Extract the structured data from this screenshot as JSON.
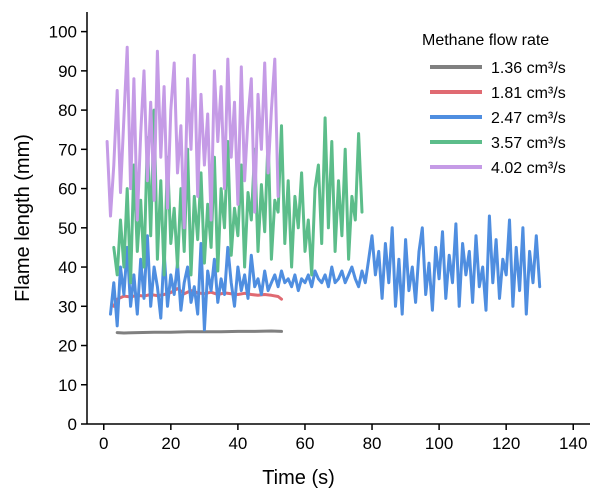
{
  "chart_data": {
    "type": "line",
    "xlabel": "Time (s)",
    "ylabel": "Flame length (mm)",
    "xlim": [
      -5,
      145
    ],
    "ylim": [
      0,
      105
    ],
    "xticks": [
      0,
      20,
      40,
      60,
      80,
      100,
      120,
      140
    ],
    "yticks": [
      0,
      10,
      20,
      30,
      40,
      50,
      60,
      70,
      80,
      90,
      100
    ],
    "grid": false,
    "legend_title": "Methane flow rate",
    "legend_position": "top-right",
    "series": [
      {
        "name": "1.36 cm³/s",
        "color": "#808080",
        "x": [
          4,
          6,
          10,
          15,
          20,
          25,
          30,
          35,
          40,
          45,
          50,
          53
        ],
        "y": [
          23.3,
          23.2,
          23.3,
          23.4,
          23.4,
          23.5,
          23.5,
          23.5,
          23.6,
          23.6,
          23.7,
          23.6
        ]
      },
      {
        "name": "1.81 cm³/s",
        "color": "#e06a72",
        "x": [
          3,
          4,
          6,
          8,
          10,
          12,
          14,
          16,
          18,
          20,
          22,
          24,
          26,
          28,
          30,
          32,
          34,
          36,
          38,
          40,
          42,
          44,
          46,
          48,
          50,
          52,
          53
        ],
        "y": [
          30,
          31.8,
          32.6,
          32.4,
          32.8,
          32.6,
          33,
          32.7,
          33,
          33.5,
          34.5,
          33.2,
          34,
          33.4,
          33.2,
          33.6,
          33,
          33.4,
          33.2,
          33,
          33.3,
          33,
          32.8,
          33,
          32.8,
          32.5,
          31.8
        ]
      },
      {
        "name": "2.47 cm³/s",
        "color": "#4f8ee0",
        "x": [
          2,
          3,
          4,
          5,
          6,
          7,
          8,
          9,
          10,
          11,
          12,
          13,
          14,
          15,
          16,
          17,
          18,
          19,
          20,
          21,
          22,
          23,
          24,
          25,
          26,
          27,
          28,
          29,
          30,
          31,
          32,
          33,
          34,
          35,
          36,
          37,
          38,
          39,
          40,
          41,
          42,
          43,
          44,
          45,
          46,
          47,
          48,
          49,
          50,
          51,
          52,
          53,
          54,
          55,
          56,
          57,
          58,
          59,
          60,
          61,
          62,
          63,
          64,
          65,
          66,
          67,
          68,
          69,
          70,
          71,
          72,
          73,
          74,
          75,
          76,
          77,
          78,
          79,
          80,
          81,
          82,
          83,
          84,
          85,
          86,
          87,
          88,
          89,
          90,
          91,
          92,
          93,
          94,
          95,
          96,
          97,
          98,
          99,
          100,
          101,
          102,
          103,
          104,
          105,
          106,
          107,
          108,
          109,
          110,
          111,
          112,
          113,
          114,
          115,
          116,
          117,
          118,
          119,
          120,
          121,
          122,
          123,
          124,
          125,
          126,
          127,
          128,
          129,
          130
        ],
        "y": [
          28,
          36,
          25,
          40,
          33,
          45,
          30,
          38,
          28,
          42,
          32,
          48,
          30,
          40,
          35,
          27,
          44,
          30,
          38,
          33,
          41,
          29,
          36,
          40,
          31,
          35,
          28,
          46,
          24,
          39,
          34,
          42,
          31,
          37,
          33,
          45,
          36,
          30,
          40,
          34,
          38,
          32,
          43,
          35,
          37,
          33,
          39,
          34,
          36,
          38,
          35,
          39,
          36,
          37,
          35,
          38,
          34,
          37,
          36,
          38,
          35,
          39,
          37,
          36,
          38,
          35,
          40,
          36,
          37,
          39,
          36,
          38,
          40,
          37,
          35,
          39,
          36,
          42,
          48,
          38,
          44,
          32,
          46,
          36,
          50,
          30,
          42,
          28,
          47,
          34,
          40,
          31,
          44,
          50,
          33,
          41,
          29,
          45,
          37,
          49,
          32,
          43,
          36,
          51,
          30,
          46,
          38,
          44,
          31,
          48,
          35,
          40,
          29,
          53,
          36,
          47,
          32,
          42,
          38,
          52,
          30,
          45,
          34,
          50,
          28,
          44,
          36,
          48,
          35
        ]
      },
      {
        "name": "3.57 cm³/s",
        "color": "#5cbd8a",
        "x": [
          3,
          4,
          5,
          6,
          7,
          8,
          9,
          10,
          11,
          12,
          13,
          14,
          15,
          16,
          17,
          18,
          19,
          20,
          21,
          22,
          23,
          24,
          25,
          26,
          27,
          28,
          29,
          30,
          31,
          32,
          33,
          34,
          35,
          36,
          37,
          38,
          39,
          40,
          41,
          42,
          43,
          44,
          45,
          46,
          47,
          48,
          49,
          50,
          51,
          52,
          53,
          54,
          55,
          56,
          57,
          58,
          59,
          60,
          61,
          62,
          63,
          64,
          65,
          66,
          67,
          68,
          69,
          70,
          71,
          72,
          73,
          74,
          75,
          76,
          77
        ],
        "y": [
          45,
          38,
          52,
          40,
          60,
          36,
          66,
          44,
          57,
          40,
          73,
          48,
          80,
          42,
          62,
          38,
          68,
          46,
          55,
          40,
          60,
          44,
          70,
          38,
          58,
          47,
          64,
          41,
          56,
          45,
          68,
          39,
          60,
          50,
          72,
          43,
          55,
          48,
          66,
          40,
          59,
          52,
          70,
          44,
          61,
          49,
          73,
          42,
          57,
          54,
          76,
          46,
          62,
          40,
          58,
          50,
          64,
          44,
          52,
          38,
          60,
          66,
          46,
          78,
          50,
          72,
          44,
          62,
          48,
          70,
          42,
          58,
          52,
          74,
          54
        ]
      },
      {
        "name": "4.02 cm³/s",
        "color": "#c59be6",
        "x": [
          1,
          2,
          3,
          4,
          5,
          6,
          7,
          8,
          9,
          10,
          11,
          12,
          13,
          14,
          15,
          16,
          17,
          18,
          19,
          20,
          21,
          22,
          23,
          24,
          25,
          26,
          27,
          28,
          29,
          30,
          31,
          32,
          33,
          34,
          35,
          36,
          37,
          38,
          39,
          40,
          41,
          42,
          43,
          44,
          45,
          46,
          47,
          48,
          49,
          50,
          51,
          52
        ],
        "y": [
          72,
          53,
          66,
          85,
          59,
          78,
          96,
          60,
          88,
          52,
          74,
          90,
          62,
          82,
          57,
          95,
          68,
          86,
          55,
          80,
          92,
          64,
          76,
          50,
          88,
          70,
          94,
          58,
          84,
          66,
          79,
          52,
          90,
          72,
          86,
          60,
          93,
          68,
          82,
          56,
          91,
          62,
          78,
          88,
          54,
          84,
          70,
          92,
          64,
          80,
          93,
          58
        ]
      }
    ]
  }
}
